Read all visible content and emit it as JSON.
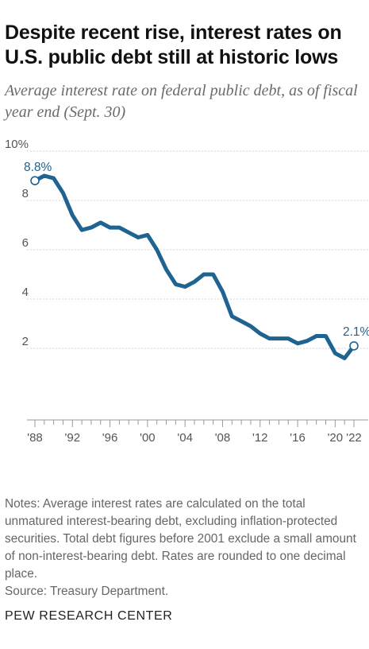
{
  "title": "Despite recent rise, interest rates on U.S. public debt still at historic lows",
  "subtitle": "Average interest rate on federal public debt, as of fiscal year end (Sept. 30)",
  "notes": "Notes: Average interest rates are calculated on the total unmatured interest-bearing debt, excluding inflation-protected securities. Total debt figures before 2001 exclude a small amount of non-interest-bearing debt. Rates are rounded to one decimal place.",
  "source": "Source: Treasury Department.",
  "org": "PEW RESEARCH CENTER",
  "colors": {
    "line": "#1f6391",
    "grid": "#c8c8c8",
    "axis": "#999999"
  },
  "chart_data": {
    "type": "line",
    "ylim": [
      0,
      10
    ],
    "xlim": [
      1988,
      2022
    ],
    "yticks": [
      2,
      4,
      6,
      8,
      10
    ],
    "ytick_labels": [
      "2",
      "4",
      "6",
      "8",
      "10%"
    ],
    "xticks": [
      1988,
      1992,
      1996,
      2000,
      2004,
      2008,
      2012,
      2016,
      2020,
      2022
    ],
    "xtick_labels": [
      "'88",
      "'92",
      "'96",
      "'00",
      "'04",
      "'08",
      "'12",
      "'16",
      "'20",
      "'22"
    ],
    "x": [
      1988,
      1989,
      1990,
      1991,
      1992,
      1993,
      1994,
      1995,
      1996,
      1997,
      1998,
      1999,
      2000,
      2001,
      2002,
      2003,
      2004,
      2005,
      2006,
      2007,
      2008,
      2009,
      2010,
      2011,
      2012,
      2013,
      2014,
      2015,
      2016,
      2017,
      2018,
      2019,
      2020,
      2021,
      2022
    ],
    "values": [
      8.8,
      9.0,
      8.9,
      8.3,
      7.4,
      6.8,
      6.9,
      7.1,
      6.9,
      6.9,
      6.7,
      6.5,
      6.6,
      6.0,
      5.2,
      4.6,
      4.5,
      4.7,
      5.0,
      5.0,
      4.3,
      3.3,
      3.1,
      2.9,
      2.6,
      2.4,
      2.4,
      2.4,
      2.2,
      2.3,
      2.5,
      2.5,
      1.8,
      1.6,
      2.1
    ],
    "annotations": [
      {
        "x": 1988,
        "y": 8.8,
        "label": "8.8%"
      },
      {
        "x": 2022,
        "y": 2.1,
        "label": "2.1%"
      }
    ],
    "grid": true
  }
}
